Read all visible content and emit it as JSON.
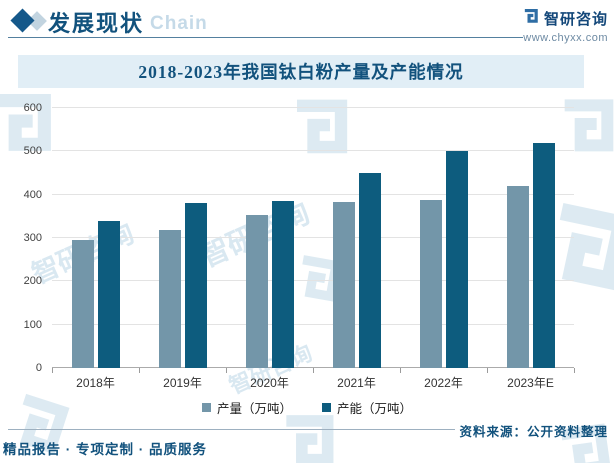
{
  "header": {
    "section_title": "发展现状",
    "background_word": "Chain",
    "brand_name": "智研咨询",
    "brand_site": "www.chyxx.com"
  },
  "chart_data": {
    "type": "bar",
    "title": "2018-2023年我国钛白粉产量及产能情况",
    "categories": [
      "2018年",
      "2019年",
      "2020年",
      "2021年",
      "2022年",
      "2023年E"
    ],
    "series": [
      {
        "name": "产量（万吨）",
        "color": "#7396a9",
        "values": [
          295,
          318,
          352,
          383,
          387,
          420
        ]
      },
      {
        "name": "产能（万吨）",
        "color": "#0d5c7e",
        "values": [
          340,
          380,
          385,
          450,
          500,
          520
        ]
      }
    ],
    "ylim": [
      0,
      600
    ],
    "yticks": [
      0,
      100,
      200,
      300,
      400,
      500,
      600
    ],
    "grid": true,
    "legend_position": "bottom"
  },
  "footer": {
    "source_label": "资料来源：公开资料整理",
    "tagline": "精品报告 · 专项定制 · 品质服务"
  },
  "watermark": {
    "text": "智研咨询"
  },
  "colors": {
    "bar_light": "#7396a9",
    "bar_dark": "#0d5c7e",
    "accent_text": "#12527d",
    "banner_bg": "#e1eef6",
    "logo_blue": "#2e6da4",
    "watermark_blue": "#bcd7e6"
  }
}
